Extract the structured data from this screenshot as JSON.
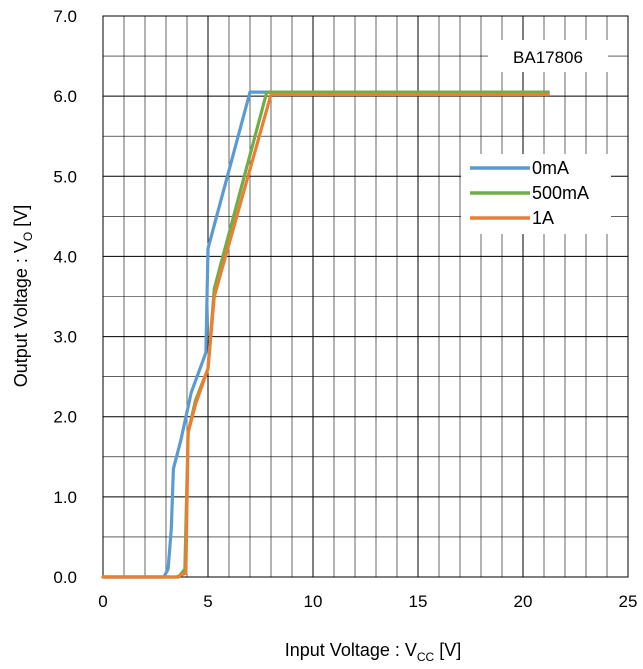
{
  "chart_data": {
    "type": "line",
    "title": "BA17806",
    "xlabel": {
      "main": "Input Voltage : V",
      "sub": "CC",
      "unit": " [V]"
    },
    "ylabel": {
      "main": "Output Voltage : V",
      "sub": "O",
      "unit": " [V]"
    },
    "xlim": [
      0,
      25
    ],
    "ylim": [
      0,
      7
    ],
    "xticks": [
      0,
      5,
      10,
      15,
      20,
      25
    ],
    "xtick_labels": [
      "0",
      "5",
      "10",
      "15",
      "20",
      "25"
    ],
    "yticks": [
      0,
      1,
      2,
      3,
      4,
      5,
      6,
      7
    ],
    "ytick_labels": [
      "0.0",
      "1.0",
      "2.0",
      "3.0",
      "4.0",
      "5.0",
      "6.0",
      "7.0"
    ],
    "grid": true,
    "legend_position": "right",
    "series": [
      {
        "name": "0mA",
        "color": "#5B9BD5",
        "points": [
          [
            0,
            0
          ],
          [
            2.9,
            0
          ],
          [
            3.1,
            0.1
          ],
          [
            3.25,
            0.6
          ],
          [
            3.35,
            1.35
          ],
          [
            3.7,
            1.7
          ],
          [
            4.2,
            2.3
          ],
          [
            4.9,
            2.8
          ],
          [
            5.0,
            4.1
          ],
          [
            7.0,
            6.05
          ],
          [
            8.0,
            6.05
          ],
          [
            21.2,
            6.05
          ]
        ]
      },
      {
        "name": "500mA",
        "color": "#70AD47",
        "points": [
          [
            0,
            0
          ],
          [
            3.6,
            0
          ],
          [
            3.9,
            0.1
          ],
          [
            4.05,
            1.8
          ],
          [
            4.4,
            2.2
          ],
          [
            5.0,
            2.6
          ],
          [
            5.3,
            3.6
          ],
          [
            7.8,
            6.05
          ],
          [
            21.2,
            6.05
          ]
        ]
      },
      {
        "name": "1A",
        "color": "#ED7D31",
        "points": [
          [
            0,
            0
          ],
          [
            3.5,
            0
          ],
          [
            3.95,
            0.05
          ],
          [
            4.05,
            1.8
          ],
          [
            4.4,
            2.15
          ],
          [
            5.0,
            2.6
          ],
          [
            5.3,
            3.5
          ],
          [
            8.0,
            6.02
          ],
          [
            21.2,
            6.02
          ]
        ]
      }
    ]
  }
}
